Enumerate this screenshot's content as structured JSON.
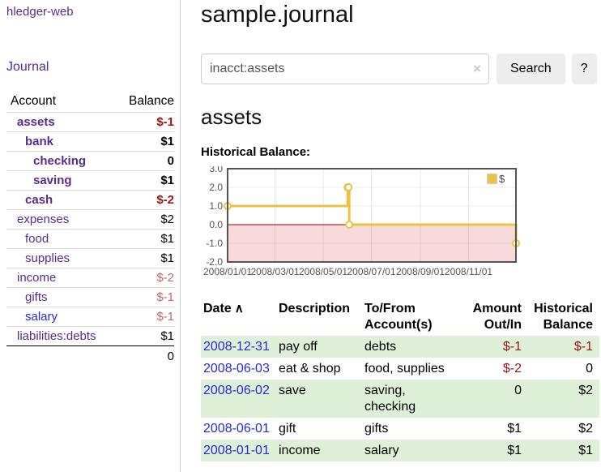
{
  "app": {
    "brand": "hledger-web",
    "nav": {
      "journal": "Journal"
    }
  },
  "colors": {
    "accent_purple": "#552d90",
    "link_blue": "#2828dd",
    "negative": "#9d1414",
    "negative_soft": "#c16868",
    "row_green": "#dff0d8",
    "series_yellow": "#edc240",
    "zero_line": "#8b0000",
    "negative_region": "#f9dada",
    "chart_border": "#545454"
  },
  "sidebar": {
    "header": {
      "account": "Account",
      "balance": "Balance"
    },
    "accounts": [
      {
        "name": "assets",
        "indent": 1,
        "bold": true,
        "balance": "$-1",
        "balance_class": "neg"
      },
      {
        "name": "bank",
        "indent": 2,
        "bold": true,
        "balance": "$1",
        "balance_class": ""
      },
      {
        "name": "checking",
        "indent": 3,
        "bold": true,
        "balance": "0",
        "balance_class": ""
      },
      {
        "name": "saving",
        "indent": 3,
        "bold": true,
        "balance": "$1",
        "balance_class": ""
      },
      {
        "name": "cash",
        "indent": 2,
        "bold": true,
        "balance": "$-2",
        "balance_class": "neg"
      },
      {
        "name": "expenses",
        "indent": 1,
        "bold": false,
        "balance": "$2",
        "balance_class": ""
      },
      {
        "name": "food",
        "indent": 2,
        "bold": false,
        "balance": "$1",
        "balance_class": ""
      },
      {
        "name": "supplies",
        "indent": 2,
        "bold": false,
        "balance": "$1",
        "balance_class": ""
      },
      {
        "name": "income",
        "indent": 1,
        "bold": false,
        "balance": "$-2",
        "balance_class": "neg-soft"
      },
      {
        "name": "gifts",
        "indent": 2,
        "bold": false,
        "balance": "$-1",
        "balance_class": "neg-soft"
      },
      {
        "name": "salary",
        "indent": 2,
        "bold": false,
        "blue": true,
        "balance": "$-1",
        "balance_class": "neg-soft"
      },
      {
        "name": "liabilities:debts",
        "indent": 1,
        "bold": false,
        "balance": "$1",
        "balance_class": ""
      }
    ],
    "total": "0"
  },
  "main": {
    "title": "sample.journal",
    "search": {
      "value": "inacct:assets",
      "clear_icon": "×",
      "button_label": "Search",
      "help_label": "?"
    },
    "account_heading": "assets",
    "chart_title": "Historical Balance:"
  },
  "chart_data": {
    "type": "line",
    "title": "Historical Balance",
    "step": true,
    "series": [
      {
        "name": "$",
        "color": "#edc240",
        "points": [
          [
            "2008-01-01",
            1
          ],
          [
            "2008-06-01",
            2
          ],
          [
            "2008-06-02",
            2
          ],
          [
            "2008-06-03",
            0
          ],
          [
            "2008-12-31",
            -1
          ]
        ]
      }
    ],
    "x_range": [
      "2008-01-01",
      "2008-12-31"
    ],
    "x_ticks": [
      "2008/01/01",
      "2008/03/01",
      "2008/05/01",
      "2008/07/01",
      "2008/09/01",
      "2008/11/01"
    ],
    "y_ticks": [
      3.0,
      2.0,
      1.0,
      0.0,
      -1.0,
      -2.0
    ],
    "ylim": [
      -2,
      3
    ],
    "grid": true,
    "legend_position": "top-right",
    "legend_label": "$",
    "negative_region_color": "#f9dada",
    "zero_line_color": "#8b0000"
  },
  "register": {
    "headers": [
      "Date",
      "Description",
      "To/From Account(s)",
      "Amount Out/In",
      "Historical Balance"
    ],
    "sort_icon": "∧",
    "rows": [
      {
        "date": "2008-12-31",
        "description": "pay off",
        "accounts": "debts",
        "amount": "$-1",
        "amount_neg": true,
        "balance": "$-1",
        "balance_neg": true
      },
      {
        "date": "2008-06-03",
        "description": "eat & shop",
        "accounts": "food, supplies",
        "amount": "$-2",
        "amount_neg": true,
        "balance": "0",
        "balance_neg": false
      },
      {
        "date": "2008-06-02",
        "description": "save",
        "accounts": "saving, checking",
        "amount": "0",
        "amount_neg": false,
        "balance": "$2",
        "balance_neg": false
      },
      {
        "date": "2008-06-01",
        "description": "gift",
        "accounts": "gifts",
        "amount": "$1",
        "amount_neg": false,
        "balance": "$2",
        "balance_neg": false
      },
      {
        "date": "2008-01-01",
        "description": "income",
        "accounts": "salary",
        "amount": "$1",
        "amount_neg": false,
        "balance": "$1",
        "balance_neg": false
      }
    ]
  }
}
